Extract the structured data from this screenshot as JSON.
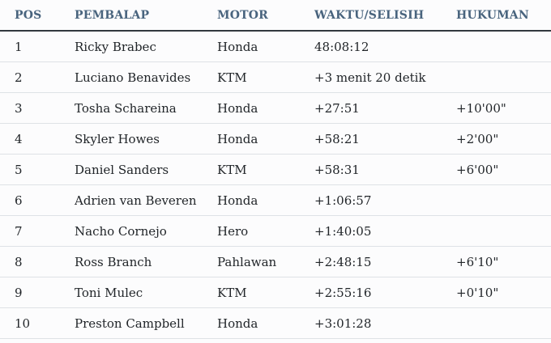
{
  "table": {
    "headers": [
      "POS",
      "PEMBALAP",
      "MOTOR",
      "WAKTU/SELISIH",
      "HUKUMAN"
    ],
    "rows": [
      {
        "pos": "1",
        "rider": "Ricky Brabec",
        "bike": "Honda",
        "time": "48:08:12",
        "penalty": ""
      },
      {
        "pos": "2",
        "rider": "Luciano Benavides",
        "bike": "KTM",
        "time": "+3 menit 20 detik",
        "penalty": ""
      },
      {
        "pos": "3",
        "rider": "Tosha Schareina",
        "bike": "Honda",
        "time": "+27:51",
        "penalty": "+10'00\""
      },
      {
        "pos": "4",
        "rider": "Skyler Howes",
        "bike": "Honda",
        "time": "+58:21",
        "penalty": "+2'00\""
      },
      {
        "pos": "5",
        "rider": "Daniel Sanders",
        "bike": "KTM",
        "time": "+58:31",
        "penalty": "+6'00\""
      },
      {
        "pos": "6",
        "rider": "Adrien van Beveren",
        "bike": "Honda",
        "time": "+1:06:57",
        "penalty": ""
      },
      {
        "pos": "7",
        "rider": "Nacho Cornejo",
        "bike": "Hero",
        "time": "+1:40:05",
        "penalty": ""
      },
      {
        "pos": "8",
        "rider": "Ross Branch",
        "bike": "Pahlawan",
        "time": "+2:48:15",
        "penalty": "+6'10\""
      },
      {
        "pos": "9",
        "rider": "Toni Mulec",
        "bike": "KTM",
        "time": "+2:55:16",
        "penalty": "+0'10\""
      },
      {
        "pos": "10",
        "rider": "Preston Campbell",
        "bike": "Honda",
        "time": "+3:01:28",
        "penalty": ""
      }
    ]
  },
  "colors": {
    "header_text": "#49647e",
    "body_text": "#212529",
    "header_underline": "#32383e",
    "row_separator": "#dee2e6",
    "background": "#fcfcfd"
  }
}
